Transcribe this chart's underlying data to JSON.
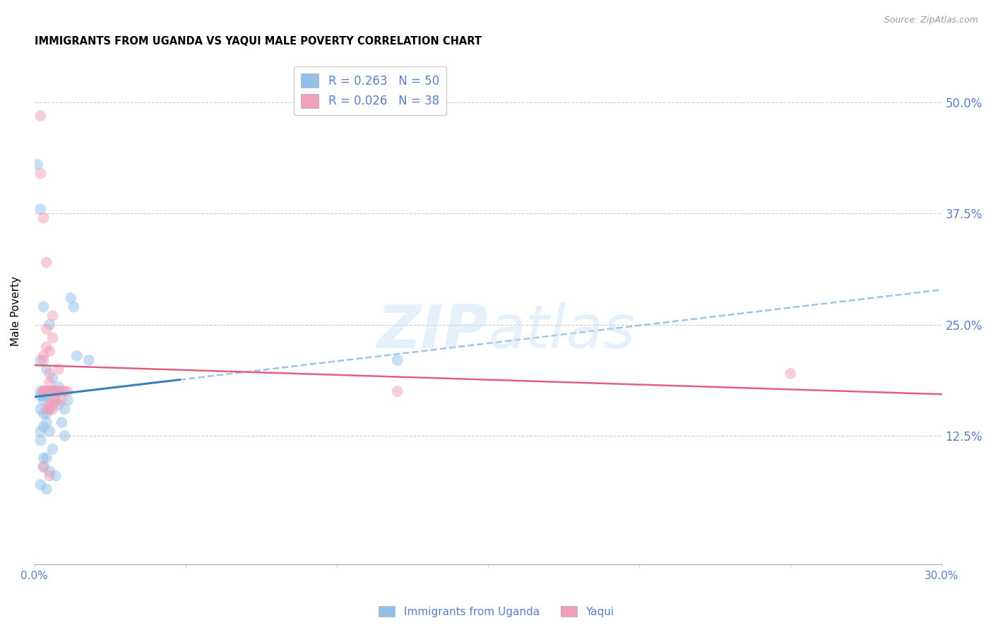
{
  "title": "IMMIGRANTS FROM UGANDA VS YAQUI MALE POVERTY CORRELATION CHART",
  "source": "Source: ZipAtlas.com",
  "ylabel": "Male Poverty",
  "ytick_labels": [
    "50.0%",
    "37.5%",
    "25.0%",
    "12.5%"
  ],
  "ytick_values": [
    0.5,
    0.375,
    0.25,
    0.125
  ],
  "xlim": [
    0.0,
    0.3
  ],
  "ylim": [
    -0.02,
    0.55
  ],
  "legend_line1": "R = 0.263   N = 50",
  "legend_line2": "R = 0.026   N = 38",
  "series1_label": "Immigrants from Uganda",
  "series2_label": "Yaqui",
  "series1_color": "#92c0e8",
  "series2_color": "#f0a0b8",
  "trend1_solid_color": "#3a7fc1",
  "trend1_dash_color": "#a0c4e8",
  "trend2_color": "#e06080",
  "background_color": "#ffffff",
  "title_fontsize": 10.5,
  "axis_color": "#5a7fc7",
  "marker_size": 130,
  "marker_alpha": 0.5,
  "series1_x": [
    0.001,
    0.002,
    0.002,
    0.002,
    0.002,
    0.003,
    0.003,
    0.003,
    0.003,
    0.003,
    0.004,
    0.004,
    0.004,
    0.004,
    0.005,
    0.005,
    0.005,
    0.005,
    0.006,
    0.006,
    0.006,
    0.006,
    0.007,
    0.007,
    0.007,
    0.008,
    0.008,
    0.009,
    0.009,
    0.01,
    0.01,
    0.011,
    0.012,
    0.013,
    0.014,
    0.002,
    0.003,
    0.004,
    0.005,
    0.006,
    0.002,
    0.003,
    0.004,
    0.005,
    0.002,
    0.003,
    0.018,
    0.12,
    0.002,
    0.004
  ],
  "series1_y": [
    0.43,
    0.175,
    0.17,
    0.155,
    0.13,
    0.175,
    0.17,
    0.165,
    0.135,
    0.09,
    0.175,
    0.17,
    0.15,
    0.1,
    0.175,
    0.175,
    0.155,
    0.085,
    0.19,
    0.175,
    0.165,
    0.11,
    0.175,
    0.175,
    0.08,
    0.18,
    0.16,
    0.175,
    0.14,
    0.155,
    0.125,
    0.165,
    0.28,
    0.27,
    0.215,
    0.38,
    0.27,
    0.2,
    0.25,
    0.175,
    0.21,
    0.15,
    0.14,
    0.13,
    0.12,
    0.1,
    0.21,
    0.21,
    0.07,
    0.065
  ],
  "series2_x": [
    0.002,
    0.003,
    0.003,
    0.003,
    0.004,
    0.004,
    0.005,
    0.005,
    0.005,
    0.006,
    0.006,
    0.006,
    0.007,
    0.007,
    0.007,
    0.008,
    0.008,
    0.009,
    0.009,
    0.01,
    0.011,
    0.003,
    0.004,
    0.005,
    0.006,
    0.003,
    0.004,
    0.005,
    0.006,
    0.003,
    0.005,
    0.002,
    0.004,
    0.006,
    0.12,
    0.25,
    0.003,
    0.005
  ],
  "series2_y": [
    0.485,
    0.175,
    0.215,
    0.175,
    0.175,
    0.245,
    0.175,
    0.22,
    0.185,
    0.175,
    0.235,
    0.175,
    0.175,
    0.165,
    0.165,
    0.175,
    0.2,
    0.175,
    0.165,
    0.175,
    0.175,
    0.175,
    0.155,
    0.155,
    0.26,
    0.37,
    0.32,
    0.195,
    0.16,
    0.21,
    0.16,
    0.42,
    0.225,
    0.155,
    0.175,
    0.195,
    0.09,
    0.08
  ],
  "watermark_zip_color": "#c8dff5",
  "watermark_atlas_color": "#c8dff5",
  "watermark_alpha": 0.45
}
